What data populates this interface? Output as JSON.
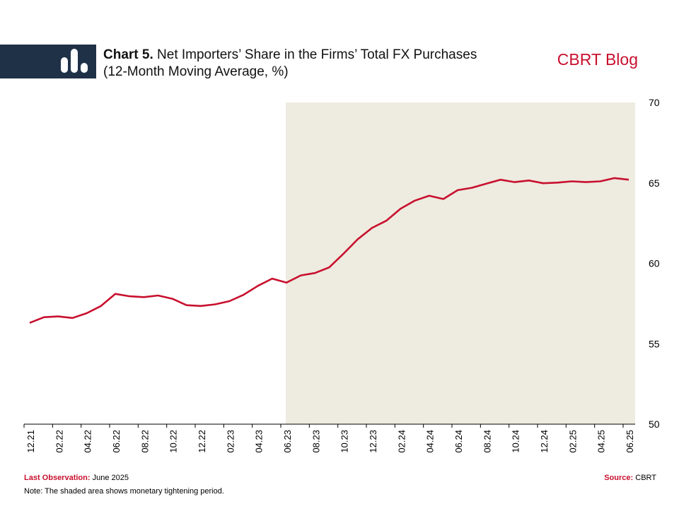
{
  "header": {
    "chart_number": "Chart 5.",
    "title_line1": "Net Importers’ Share in the Firms’ Total FX Purchases",
    "title_line2": "(12-Month Moving Average, %)",
    "brand": "CBRT Blog"
  },
  "footer": {
    "last_obs_label": "Last Observation:",
    "last_obs_value": "June 2025",
    "source_label": "Source:",
    "source_value": "CBRT",
    "note": "Note: The shaded area shows monetary tightening period."
  },
  "colors": {
    "accent": "#c8102e",
    "header_band": "#1f3147",
    "shade": "#eeebe0"
  },
  "chart_data": {
    "type": "line",
    "x": [
      "12.21",
      "01.22",
      "02.22",
      "03.22",
      "04.22",
      "05.22",
      "06.22",
      "07.22",
      "08.22",
      "09.22",
      "10.22",
      "11.22",
      "12.22",
      "01.23",
      "02.23",
      "03.23",
      "04.23",
      "05.23",
      "06.23",
      "07.23",
      "08.23",
      "09.23",
      "10.23",
      "11.23",
      "12.23",
      "01.24",
      "02.24",
      "03.24",
      "04.24",
      "05.24",
      "06.24",
      "07.24",
      "08.24",
      "09.24",
      "10.24",
      "11.24",
      "12.24",
      "01.25",
      "02.25",
      "03.25",
      "04.25",
      "05.25",
      "06.25"
    ],
    "series": [
      {
        "values": [
          56.3,
          56.65,
          56.7,
          56.6,
          56.9,
          57.35,
          58.1,
          57.95,
          57.9,
          58.0,
          57.8,
          57.4,
          57.35,
          57.45,
          57.65,
          58.05,
          58.6,
          59.05,
          58.8,
          59.25,
          59.4,
          59.75,
          60.6,
          61.5,
          62.2,
          62.65,
          63.4,
          63.9,
          64.2,
          64.0,
          64.55,
          64.7,
          64.95,
          65.2,
          65.05,
          65.15,
          64.98,
          65.02,
          65.1,
          65.05,
          65.1,
          65.3,
          65.2
        ],
        "color": "#c8102e"
      }
    ],
    "ylim": [
      50,
      70
    ],
    "yticks": [
      50,
      55,
      60,
      65,
      70
    ],
    "tick_labels": [
      "12.21",
      "02.22",
      "04.22",
      "06.22",
      "08.22",
      "10.22",
      "12.22",
      "02.23",
      "04.23",
      "06.23",
      "08.23",
      "10.23",
      "12.23",
      "02.24",
      "04.24",
      "06.24",
      "08.24",
      "10.24",
      "12.24",
      "02.25",
      "04.25",
      "06.25"
    ],
    "shaded_range": [
      "06.23",
      "06.25"
    ],
    "y_axis_position": "right",
    "grid": false
  }
}
